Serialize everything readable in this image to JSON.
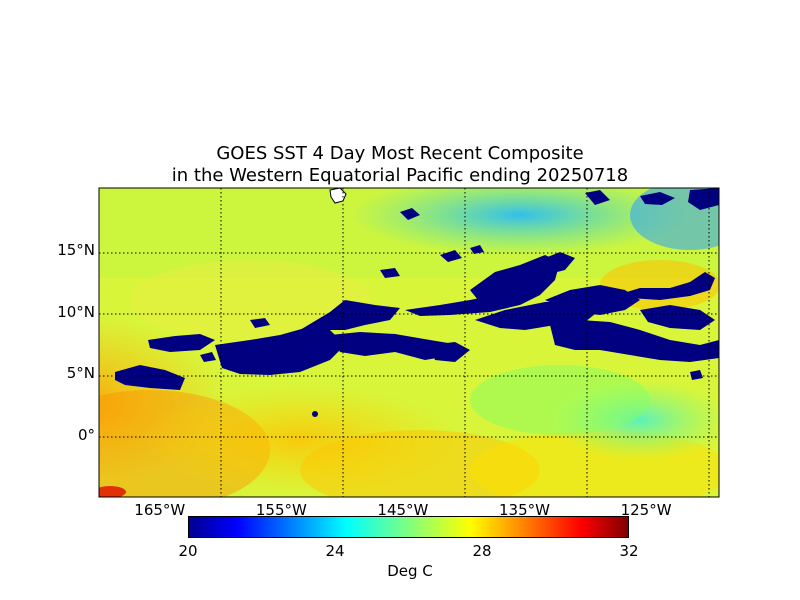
{
  "title": {
    "line1": "GOES SST 4 Day Most Recent Composite",
    "line2": "in the Western Equatorial Pacific ending 20250718"
  },
  "map": {
    "lon_range": [
      -170,
      -119
    ],
    "lat_range": [
      -5,
      20
    ],
    "lat_ticks": [
      {
        "value": 15,
        "label": "15°N"
      },
      {
        "value": 10,
        "label": "10°N"
      },
      {
        "value": 5,
        "label": "5°N"
      },
      {
        "value": 0,
        "label": "0°"
      }
    ],
    "lon_ticks": [
      {
        "value": -165,
        "label": "165°W"
      },
      {
        "value": -155,
        "label": "155°W"
      },
      {
        "value": -145,
        "label": "145°W"
      },
      {
        "value": -135,
        "label": "135°W"
      },
      {
        "value": -125,
        "label": "125°W"
      }
    ],
    "grid": "dotted",
    "cloud_mask_color": "#000080",
    "land_color": "#ffffff"
  },
  "colorbar": {
    "label": "Deg C",
    "min": 20,
    "max": 32,
    "ticks": [
      {
        "value": 20,
        "label": "20"
      },
      {
        "value": 24,
        "label": "24"
      },
      {
        "value": 28,
        "label": "28"
      },
      {
        "value": 32,
        "label": "32"
      }
    ],
    "colormap": "jet"
  }
}
